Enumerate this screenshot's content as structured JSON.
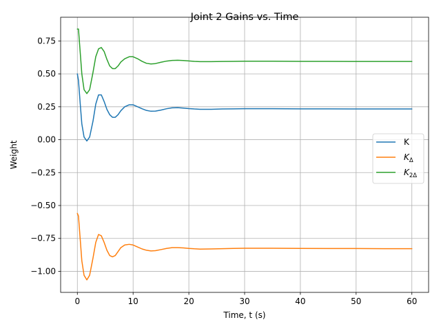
{
  "chart_data": {
    "type": "line",
    "title": "Joint 2 Gains vs. Time",
    "xlabel": "Time, t (s)",
    "ylabel": "Weight",
    "xlim": [
      -3,
      63
    ],
    "ylim": [
      -1.16,
      0.93
    ],
    "xticks": [
      0,
      10,
      20,
      30,
      40,
      50,
      60
    ],
    "xtick_labels": [
      "0",
      "10",
      "20",
      "30",
      "40",
      "50",
      "60"
    ],
    "yticks": [
      -1.0,
      -0.75,
      -0.5,
      -0.25,
      0.0,
      0.25,
      0.5,
      0.75
    ],
    "ytick_labels": [
      "−1.00",
      "−0.75",
      "−0.50",
      "−0.25",
      "0.00",
      "0.25",
      "0.50",
      "0.75"
    ],
    "grid": true,
    "legend_position": "center-right",
    "series": [
      {
        "name": "K",
        "legend_main": "K",
        "legend_sub": "",
        "color": "#1f77b4",
        "x": [
          0,
          0.2,
          0.5,
          0.8,
          1.2,
          1.7,
          2.2,
          2.8,
          3.3,
          3.8,
          4.3,
          4.8,
          5.3,
          5.8,
          6.3,
          6.8,
          7.3,
          7.8,
          8.5,
          9.3,
          10.0,
          10.8,
          11.6,
          12.4,
          13.2,
          14.0,
          15.0,
          16.0,
          17.0,
          18.0,
          19.0,
          20.0,
          21.0,
          22.0,
          24.0,
          26.0,
          28.0,
          30.0,
          35.0,
          40.0,
          45.0,
          50.0,
          55.0,
          60.0
        ],
        "y": [
          0.5,
          0.45,
          0.28,
          0.12,
          0.02,
          -0.01,
          0.02,
          0.14,
          0.27,
          0.34,
          0.34,
          0.29,
          0.23,
          0.19,
          0.17,
          0.17,
          0.19,
          0.22,
          0.25,
          0.265,
          0.265,
          0.25,
          0.235,
          0.222,
          0.216,
          0.217,
          0.225,
          0.235,
          0.242,
          0.243,
          0.24,
          0.236,
          0.233,
          0.231,
          0.231,
          0.233,
          0.234,
          0.235,
          0.235,
          0.234,
          0.234,
          0.233,
          0.233,
          0.233
        ]
      },
      {
        "name": "KΔ",
        "legend_main": "K",
        "legend_sub": "Δ",
        "color": "#ff7f0e",
        "x": [
          0,
          0.2,
          0.5,
          0.8,
          1.2,
          1.7,
          2.2,
          2.8,
          3.3,
          3.8,
          4.3,
          4.8,
          5.3,
          5.8,
          6.3,
          6.8,
          7.3,
          7.8,
          8.5,
          9.3,
          10.0,
          10.8,
          11.6,
          12.4,
          13.2,
          14.0,
          15.0,
          16.0,
          17.0,
          18.0,
          19.0,
          20.0,
          21.0,
          22.0,
          24.0,
          26.0,
          28.0,
          30.0,
          35.0,
          40.0,
          45.0,
          50.0,
          55.0,
          60.0
        ],
        "y": [
          -0.56,
          -0.58,
          -0.75,
          -0.92,
          -1.03,
          -1.065,
          -1.03,
          -0.9,
          -0.78,
          -0.72,
          -0.73,
          -0.78,
          -0.84,
          -0.88,
          -0.89,
          -0.88,
          -0.85,
          -0.82,
          -0.8,
          -0.795,
          -0.8,
          -0.815,
          -0.83,
          -0.84,
          -0.845,
          -0.843,
          -0.835,
          -0.826,
          -0.82,
          -0.82,
          -0.822,
          -0.826,
          -0.829,
          -0.831,
          -0.83,
          -0.828,
          -0.826,
          -0.825,
          -0.825,
          -0.826,
          -0.827,
          -0.827,
          -0.828,
          -0.828
        ]
      },
      {
        "name": "K2Δ",
        "legend_main": "K",
        "legend_sub": "2Δ",
        "color": "#2ca02c",
        "x": [
          0,
          0.2,
          0.5,
          0.8,
          1.2,
          1.7,
          2.2,
          2.8,
          3.3,
          3.8,
          4.3,
          4.8,
          5.3,
          5.8,
          6.3,
          6.8,
          7.3,
          7.8,
          8.5,
          9.3,
          10.0,
          10.8,
          11.6,
          12.4,
          13.2,
          14.0,
          15.0,
          16.0,
          17.0,
          18.0,
          19.0,
          20.0,
          21.0,
          22.0,
          24.0,
          26.0,
          28.0,
          30.0,
          35.0,
          40.0,
          45.0,
          50.0,
          55.0,
          60.0
        ],
        "y": [
          0.84,
          0.84,
          0.67,
          0.5,
          0.38,
          0.35,
          0.38,
          0.51,
          0.63,
          0.69,
          0.7,
          0.67,
          0.61,
          0.56,
          0.54,
          0.54,
          0.56,
          0.59,
          0.615,
          0.63,
          0.63,
          0.615,
          0.595,
          0.58,
          0.575,
          0.578,
          0.588,
          0.597,
          0.602,
          0.603,
          0.601,
          0.598,
          0.595,
          0.593,
          0.593,
          0.594,
          0.595,
          0.596,
          0.596,
          0.595,
          0.595,
          0.594,
          0.594,
          0.594
        ]
      }
    ]
  }
}
